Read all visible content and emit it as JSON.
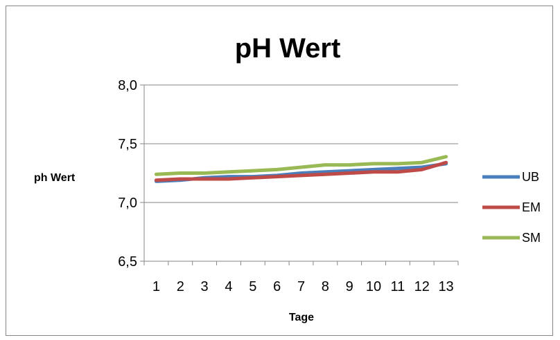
{
  "chart_data": {
    "type": "line",
    "title": "pH Wert",
    "xlabel": "Tage",
    "ylabel": "ph Wert",
    "categories": [
      "1",
      "2",
      "3",
      "4",
      "5",
      "6",
      "7",
      "8",
      "9",
      "10",
      "11",
      "12",
      "13"
    ],
    "y_ticks": [
      "6,5",
      "7,0",
      "7,5",
      "8,0"
    ],
    "ylim": [
      6.5,
      8.0
    ],
    "grid": true,
    "legend_position": "right",
    "series": [
      {
        "name": "UB",
        "color": "#4a7ebb",
        "values": [
          7.18,
          7.19,
          7.21,
          7.22,
          7.22,
          7.23,
          7.25,
          7.26,
          7.27,
          7.28,
          7.29,
          7.3,
          7.33
        ]
      },
      {
        "name": "EM",
        "color": "#be4b48",
        "values": [
          7.19,
          7.2,
          7.2,
          7.2,
          7.21,
          7.22,
          7.23,
          7.24,
          7.25,
          7.26,
          7.26,
          7.28,
          7.34
        ]
      },
      {
        "name": "SM",
        "color": "#98b954",
        "values": [
          7.24,
          7.25,
          7.25,
          7.26,
          7.27,
          7.28,
          7.3,
          7.32,
          7.32,
          7.33,
          7.33,
          7.34,
          7.39
        ]
      }
    ]
  }
}
